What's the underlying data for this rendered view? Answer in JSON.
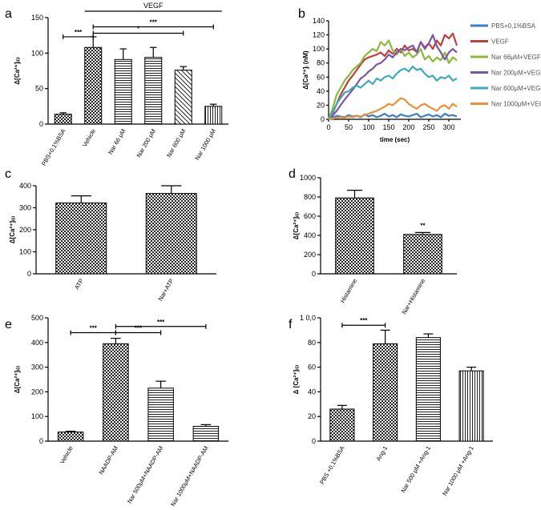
{
  "panels": [
    "a",
    "b",
    "c",
    "d",
    "e",
    "f"
  ],
  "chart_data": [
    {
      "id": "a",
      "type": "bar",
      "ylabel": "Δ[Ca²⁺]ᵢ₍ᵢ₎",
      "ylim": [
        0,
        150
      ],
      "yticks": [
        0,
        50,
        100,
        150
      ],
      "categories": [
        "PBS+0,1%BSA",
        "Vehicle",
        "Nar 66 μM",
        "Nar 200 μM",
        "Nar 600 μM",
        "Nar 1000 μM"
      ],
      "values": [
        14,
        108,
        91,
        94,
        76,
        25
      ],
      "errors": [
        2,
        15,
        15,
        14,
        5,
        3
      ],
      "patterns": [
        "checker",
        "checker",
        "hlines",
        "hlines",
        "dlines",
        "vlines"
      ],
      "group_label": "VEGF",
      "group_span": [
        1,
        5
      ],
      "sig": [
        {
          "from": 0,
          "to": 1,
          "label": "***",
          "y": 123
        },
        {
          "from": 1,
          "to": 5,
          "label": "***",
          "y": 137
        },
        {
          "from": 1,
          "to": 4,
          "label": "*",
          "y": 128
        }
      ]
    },
    {
      "id": "b",
      "type": "line",
      "ylabel": "Δ[Ca²⁺]ᵢ (nM)",
      "xlabel": "time (sec)",
      "xlim": [
        0,
        330
      ],
      "ylim": [
        0,
        140
      ],
      "xticks": [
        0,
        50,
        100,
        150,
        200,
        250,
        300
      ],
      "yticks": [
        0,
        20,
        40,
        60,
        80,
        100,
        120,
        140
      ],
      "x": [
        0,
        10,
        20,
        30,
        40,
        50,
        60,
        70,
        80,
        90,
        100,
        110,
        120,
        130,
        140,
        150,
        160,
        170,
        180,
        190,
        200,
        210,
        220,
        230,
        240,
        250,
        260,
        270,
        280,
        290,
        300,
        310,
        320
      ],
      "series": [
        {
          "name": "PBS+0,1%BSA",
          "color": "#3b7fc4",
          "values": [
            0,
            2,
            5,
            4,
            3,
            6,
            4,
            5,
            3,
            7,
            4,
            6,
            3,
            5,
            8,
            4,
            6,
            3,
            7,
            5,
            4,
            6,
            8,
            3,
            5,
            7,
            4,
            6,
            3,
            8,
            5,
            6,
            4
          ]
        },
        {
          "name": "VEGF",
          "color": "#c0403c",
          "values": [
            0,
            8,
            22,
            35,
            45,
            55,
            62,
            70,
            78,
            85,
            88,
            90,
            92,
            95,
            90,
            98,
            93,
            100,
            95,
            105,
            98,
            100,
            96,
            110,
            102,
            108,
            100,
            112,
            105,
            120,
            115,
            122,
            105
          ]
        },
        {
          "name": "Nar 66μM+VEGF",
          "color": "#8bb93d",
          "values": [
            0,
            15,
            35,
            45,
            55,
            62,
            70,
            75,
            80,
            90,
            95,
            100,
            97,
            110,
            105,
            112,
            98,
            92,
            100,
            90,
            95,
            88,
            92,
            100,
            85,
            90,
            82,
            88,
            84,
            95,
            80,
            88,
            84
          ]
        },
        {
          "name": "Nar 200μM+VEGF",
          "color": "#7d55a5",
          "values": [
            0,
            5,
            12,
            20,
            28,
            35,
            42,
            50,
            58,
            62,
            68,
            72,
            78,
            80,
            85,
            92,
            88,
            95,
            100,
            98,
            102,
            105,
            95,
            110,
            100,
            108,
            120,
            104,
            95,
            85,
            95,
            100,
            95
          ]
        },
        {
          "name": "Nar 600μM+VEGF",
          "color": "#3fa9be",
          "values": [
            0,
            10,
            22,
            30,
            38,
            40,
            45,
            48,
            45,
            50,
            55,
            50,
            58,
            55,
            60,
            62,
            58,
            65,
            70,
            72,
            68,
            75,
            70,
            72,
            65,
            60,
            62,
            55,
            60,
            58,
            62,
            55,
            58
          ]
        },
        {
          "name": "Nar 1000μM+VEGF",
          "color": "#e8913a",
          "values": [
            0,
            1,
            2,
            3,
            2,
            4,
            3,
            5,
            4,
            6,
            8,
            10,
            12,
            15,
            18,
            22,
            20,
            25,
            30,
            28,
            22,
            18,
            15,
            20,
            22,
            18,
            15,
            12,
            18,
            20,
            15,
            22,
            18
          ]
        }
      ]
    },
    {
      "id": "c",
      "type": "bar",
      "ylabel": "Δ[Ca²⁺]ᵢ₍ᵢ₎",
      "ylim": [
        0,
        400
      ],
      "yticks": [
        0,
        100,
        200,
        300,
        400
      ],
      "categories": [
        "ATP",
        "Nar+ATP"
      ],
      "values": [
        322,
        365
      ],
      "errors": [
        32,
        35
      ],
      "patterns": [
        "checker",
        "checker"
      ]
    },
    {
      "id": "d",
      "type": "bar",
      "ylabel": "Δ[Ca²⁺]ᵢ₍ᵢ₎",
      "ylim": [
        0,
        1000
      ],
      "yticks": [
        0,
        200,
        400,
        600,
        800,
        1000
      ],
      "categories": [
        "Histamine",
        "Nar+Histamine"
      ],
      "values": [
        790,
        410
      ],
      "errors": [
        80,
        20
      ],
      "patterns": [
        "checker",
        "checker"
      ],
      "sig_above": [
        {
          "index": 1,
          "label": "**"
        }
      ]
    },
    {
      "id": "e",
      "type": "bar",
      "ylabel": "Δ[Ca²⁺]ᵢ₍ᵢ₎",
      "ylim": [
        0,
        500
      ],
      "yticks": [
        0,
        100,
        200,
        300,
        400,
        500
      ],
      "categories": [
        "Vehicle",
        "NAADP-AM",
        "Nar 500μM+NAADP-AM",
        "Nar 1000μM+NAADP-AM"
      ],
      "values": [
        37,
        395,
        215,
        60
      ],
      "errors": [
        3,
        22,
        28,
        7
      ],
      "patterns": [
        "checker",
        "checker",
        "hlines",
        "hlines"
      ],
      "sig": [
        {
          "from": 0,
          "to": 1,
          "label": "***",
          "y": 440
        },
        {
          "from": 1,
          "to": 2,
          "label": "***",
          "y": 440
        },
        {
          "from": 1,
          "to": 3,
          "label": "***",
          "y": 465
        }
      ]
    },
    {
      "id": "f",
      "type": "bar",
      "ylabel": "Δ [Ca²⁺]ᵢ₍ᵢ₎",
      "ylim": [
        0,
        100
      ],
      "yticks": [
        0,
        20,
        40,
        60,
        80,
        100
      ],
      "ytick_labels": [
        "0",
        "20",
        "40",
        "60",
        "80",
        "1 0,0"
      ],
      "categories": [
        "PBS +0,1%BSA",
        "Ang-1",
        "Nar 500 μM +Ang-1",
        "Nar 1000 μM +Ang-1"
      ],
      "values": [
        26,
        79,
        84,
        57
      ],
      "errors": [
        3,
        11,
        3,
        3
      ],
      "patterns": [
        "checker",
        "checker",
        "hlines",
        "vlines"
      ],
      "sig": [
        {
          "from": 0,
          "to": 1,
          "label": "***",
          "y": 94
        }
      ]
    }
  ]
}
